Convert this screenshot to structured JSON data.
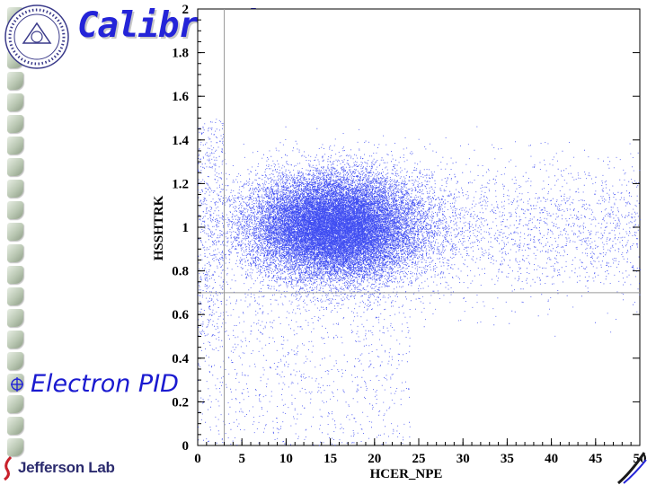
{
  "slide": {
    "title": "Calibration (electron PID)",
    "bullet": "Electron PID",
    "footer_logo": "Jefferson Lab"
  },
  "colors": {
    "title": "#2424d8",
    "bullet": "#1a1ad0",
    "points": "#1f2ff0",
    "cut_lines": "#9a9a9a",
    "jlab_text": "#2b2b6e"
  },
  "icons": {
    "bullet": "circle-cross-icon",
    "logo": "university-seal-icon",
    "jlab": "jlab-swoosh-icon",
    "corner": "corner-swoosh-icon"
  },
  "chart_data": {
    "type": "scatter",
    "xlabel": "HCER_NPE",
    "ylabel": "HSSHTRK",
    "xlim": [
      0,
      50
    ],
    "ylim": [
      0,
      2
    ],
    "xticks": [
      "0",
      "5",
      "10",
      "15",
      "20",
      "25",
      "30",
      "35",
      "40",
      "45",
      "50"
    ],
    "yticks": [
      "0",
      "0.2",
      "0.4",
      "0.6",
      "0.8",
      "1",
      "1.2",
      "1.4",
      "1.6",
      "1.8",
      "2"
    ],
    "cuts": {
      "x": 3,
      "y": 0.7
    },
    "grid": false,
    "legend": "none",
    "cluster": {
      "x_center": 15.5,
      "x_sigma": 4.8,
      "y_center": 1.0,
      "y_sigma": 0.12,
      "x_tail_max": 50
    }
  }
}
